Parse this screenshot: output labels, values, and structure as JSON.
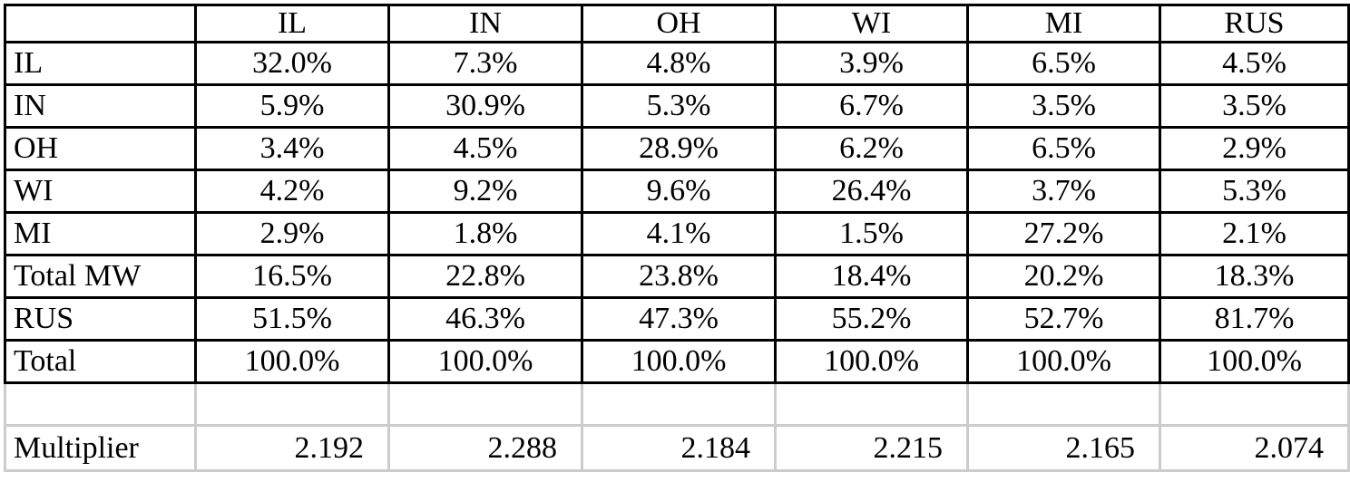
{
  "table": {
    "columns": [
      "",
      "IL",
      "IN",
      "OH",
      "WI",
      "MI",
      "RUS"
    ],
    "rows": [
      {
        "label": "IL",
        "values": [
          "32.0%",
          "7.3%",
          "4.8%",
          "3.9%",
          "6.5%",
          "4.5%"
        ]
      },
      {
        "label": "IN",
        "values": [
          "5.9%",
          "30.9%",
          "5.3%",
          "6.7%",
          "3.5%",
          "3.5%"
        ]
      },
      {
        "label": "OH",
        "values": [
          "3.4%",
          "4.5%",
          "28.9%",
          "6.2%",
          "6.5%",
          "2.9%"
        ]
      },
      {
        "label": "WI",
        "values": [
          "4.2%",
          "9.2%",
          "9.6%",
          "26.4%",
          "3.7%",
          "5.3%"
        ]
      },
      {
        "label": "MI",
        "values": [
          "2.9%",
          "1.8%",
          "4.1%",
          "1.5%",
          "27.2%",
          "2.1%"
        ]
      },
      {
        "label": "Total MW",
        "values": [
          "16.5%",
          "22.8%",
          "23.8%",
          "18.4%",
          "20.2%",
          "18.3%"
        ]
      },
      {
        "label": "RUS",
        "values": [
          "51.5%",
          "46.3%",
          "47.3%",
          "55.2%",
          "52.7%",
          "81.7%"
        ]
      },
      {
        "label": "Total",
        "values": [
          "100.0%",
          "100.0%",
          "100.0%",
          "100.0%",
          "100.0%",
          "100.0%"
        ]
      }
    ],
    "multiplier": {
      "label": "Multiplier",
      "values": [
        "2.192",
        "2.288",
        "2.184",
        "2.215",
        "2.165",
        "2.074"
      ]
    }
  }
}
